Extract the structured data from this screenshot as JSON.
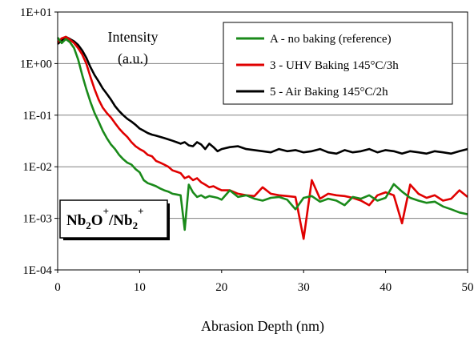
{
  "chart_data": {
    "type": "line",
    "title": "",
    "xlabel": "Abrasion Depth (nm)",
    "ylabel_line1": "Intensity",
    "ylabel_line2": "(a.u.)",
    "xlim": [
      0,
      50
    ],
    "ylim": [
      0.0001,
      10
    ],
    "yscale": "log",
    "x_ticks": [
      "0",
      "10",
      "20",
      "30",
      "40",
      "50"
    ],
    "y_ticks": [
      "1E-04",
      "1E-03",
      "1E-02",
      "1E-01",
      "1E+00",
      "1E+01"
    ],
    "grid": "horizontal",
    "legend_position": "top-right",
    "ratio_label": {
      "parts": [
        {
          "text": "Nb",
          "style": "normal"
        },
        {
          "text": "2",
          "style": "sub"
        },
        {
          "text": "O",
          "style": "normal"
        },
        {
          "text": "+",
          "style": "sup"
        },
        {
          "text": "/Nb",
          "style": "normal"
        },
        {
          "text": "2",
          "style": "sub"
        },
        {
          "text": "+",
          "style": "sup"
        }
      ]
    },
    "series": [
      {
        "name": "A - no baking (reference)",
        "color": "#1a8a1a",
        "x": [
          0,
          0.5,
          1,
          1.5,
          2,
          2.5,
          3,
          3.5,
          4,
          4.5,
          5,
          5.5,
          6,
          6.5,
          7,
          7.5,
          8,
          8.5,
          9,
          9.5,
          10,
          10.5,
          11,
          11.5,
          12,
          12.5,
          13,
          13.5,
          14,
          14.5,
          15,
          15.5,
          16,
          16.5,
          17,
          17.5,
          18,
          18.5,
          19,
          19.5,
          20,
          21,
          22,
          23,
          24,
          25,
          26,
          27,
          28,
          29,
          30,
          31,
          32,
          33,
          34,
          35,
          36,
          37,
          38,
          39,
          40,
          41,
          42,
          43,
          44,
          45,
          46,
          47,
          48,
          49,
          50
        ],
        "y": [
          3.2,
          2.5,
          3.0,
          2.6,
          2.0,
          1.2,
          0.6,
          0.32,
          0.18,
          0.11,
          0.075,
          0.05,
          0.036,
          0.027,
          0.022,
          0.017,
          0.014,
          0.012,
          0.011,
          0.009,
          0.0078,
          0.0055,
          0.0048,
          0.0045,
          0.0042,
          0.0038,
          0.0035,
          0.0033,
          0.003,
          0.0029,
          0.0028,
          0.0006,
          0.0045,
          0.0032,
          0.0026,
          0.0028,
          0.0025,
          0.0027,
          0.0026,
          0.0025,
          0.0023,
          0.0035,
          0.0026,
          0.0028,
          0.0024,
          0.0022,
          0.0025,
          0.0026,
          0.0023,
          0.0015,
          0.0025,
          0.0027,
          0.0021,
          0.0024,
          0.0022,
          0.0018,
          0.0026,
          0.0024,
          0.0028,
          0.0022,
          0.0025,
          0.0046,
          0.0033,
          0.0025,
          0.0022,
          0.002,
          0.0021,
          0.0017,
          0.0015,
          0.0013,
          0.0012
        ]
      },
      {
        "name": "3 - UHV Baking 145°C/3h",
        "color": "#e00000",
        "x": [
          0,
          0.5,
          1,
          1.5,
          2,
          2.5,
          3,
          3.5,
          4,
          4.5,
          5,
          5.5,
          6,
          6.5,
          7,
          7.5,
          8,
          8.5,
          9,
          9.5,
          10,
          10.5,
          11,
          11.5,
          12,
          12.5,
          13,
          13.5,
          14,
          14.5,
          15,
          15.5,
          16,
          16.5,
          17,
          17.5,
          18,
          18.5,
          19,
          19.5,
          20,
          21,
          22,
          23,
          24,
          25,
          26,
          27,
          28,
          29,
          30,
          31,
          32,
          33,
          34,
          35,
          36,
          37,
          38,
          39,
          40,
          41,
          42,
          43,
          44,
          45,
          46,
          47,
          48,
          49,
          50
        ],
        "y": [
          2.6,
          3.1,
          3.3,
          2.9,
          2.5,
          2.0,
          1.5,
          1.0,
          0.55,
          0.32,
          0.2,
          0.14,
          0.11,
          0.09,
          0.07,
          0.055,
          0.045,
          0.038,
          0.03,
          0.025,
          0.022,
          0.02,
          0.017,
          0.016,
          0.013,
          0.012,
          0.011,
          0.01,
          0.0085,
          0.008,
          0.0075,
          0.006,
          0.0065,
          0.0055,
          0.006,
          0.005,
          0.0045,
          0.004,
          0.0042,
          0.0038,
          0.0035,
          0.0035,
          0.003,
          0.0028,
          0.0027,
          0.004,
          0.003,
          0.0028,
          0.0027,
          0.0026,
          0.0004,
          0.0055,
          0.0024,
          0.003,
          0.0028,
          0.0027,
          0.0025,
          0.0022,
          0.0018,
          0.0028,
          0.0032,
          0.0028,
          0.0008,
          0.0045,
          0.003,
          0.0025,
          0.0028,
          0.0022,
          0.0024,
          0.0035,
          0.0026
        ]
      },
      {
        "name": "5 -  Air Baking 145°C/2h",
        "color": "#000000",
        "x": [
          0,
          0.5,
          1,
          1.5,
          2,
          2.5,
          3,
          3.5,
          4,
          4.5,
          5,
          5.5,
          6,
          6.5,
          7,
          7.5,
          8,
          8.5,
          9,
          9.5,
          10,
          10.5,
          11,
          11.5,
          12,
          12.5,
          13,
          13.5,
          14,
          14.5,
          15,
          15.5,
          16,
          16.5,
          17,
          17.5,
          18,
          18.5,
          19,
          19.5,
          20,
          21,
          22,
          23,
          24,
          25,
          26,
          27,
          28,
          29,
          30,
          31,
          32,
          33,
          34,
          35,
          36,
          37,
          38,
          39,
          40,
          41,
          42,
          43,
          44,
          45,
          46,
          47,
          48,
          49,
          50
        ],
        "y": [
          2.4,
          2.8,
          3.3,
          3.0,
          2.7,
          2.3,
          1.8,
          1.3,
          0.85,
          0.6,
          0.45,
          0.33,
          0.26,
          0.2,
          0.15,
          0.12,
          0.1,
          0.085,
          0.075,
          0.065,
          0.055,
          0.05,
          0.045,
          0.042,
          0.04,
          0.038,
          0.036,
          0.034,
          0.032,
          0.03,
          0.028,
          0.03,
          0.026,
          0.025,
          0.03,
          0.027,
          0.022,
          0.028,
          0.024,
          0.02,
          0.022,
          0.024,
          0.025,
          0.022,
          0.021,
          0.02,
          0.019,
          0.022,
          0.02,
          0.021,
          0.019,
          0.02,
          0.022,
          0.019,
          0.018,
          0.021,
          0.019,
          0.02,
          0.022,
          0.019,
          0.021,
          0.02,
          0.018,
          0.02,
          0.019,
          0.018,
          0.02,
          0.019,
          0.018,
          0.02,
          0.022
        ]
      }
    ]
  }
}
